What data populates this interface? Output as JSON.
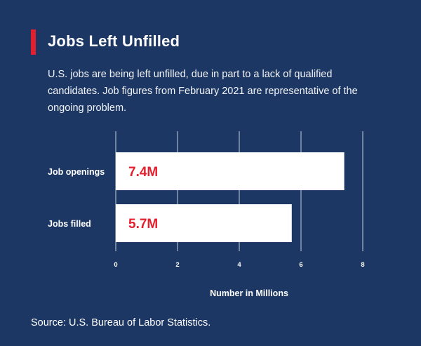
{
  "header": {
    "title": "Jobs Left Unfilled",
    "subtitle": "U.S. jobs are being left unfilled, due in part to a lack of qualified candidates. Job figures from February 2021 are representative of the ongoing problem."
  },
  "footer": {
    "source": "Source: U.S. Bureau of Labor Statistics."
  },
  "colors": {
    "background": "#1c3763",
    "accent": "#e4202f",
    "bar": "#ffffff",
    "value_label": "#e4202f",
    "grid": "#a9b6ca"
  },
  "chart_data": {
    "type": "bar",
    "orientation": "horizontal",
    "categories": [
      "Job openings",
      "Jobs filled"
    ],
    "values": [
      7.4,
      5.7
    ],
    "value_labels": [
      "7.4M",
      "5.7M"
    ],
    "xlabel": "Number in Millions",
    "ylabel": "",
    "xlim": [
      0,
      8
    ],
    "x_ticks": [
      0,
      2,
      4,
      6,
      8
    ],
    "grid": true,
    "legend": "none"
  }
}
